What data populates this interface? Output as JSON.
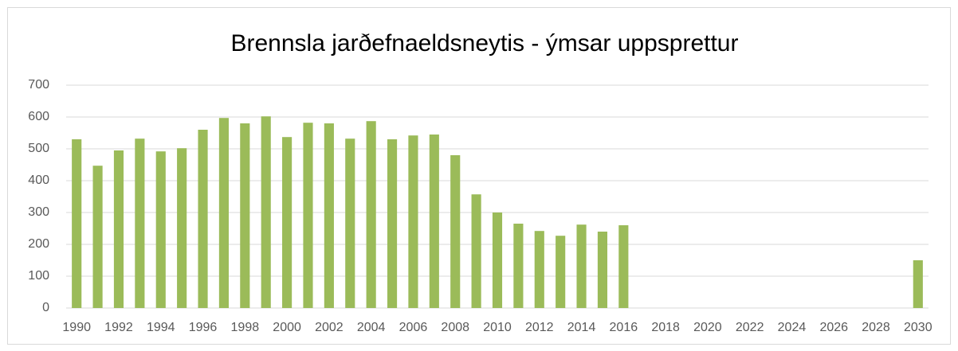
{
  "chart_data": {
    "type": "bar",
    "title": "Brennsla jarðefnaeldsneytis - ýmsar uppsprettur",
    "categories": [
      "1990",
      null,
      "1992",
      null,
      "1994",
      null,
      "1996",
      null,
      "1998",
      null,
      "2000",
      null,
      "2002",
      null,
      "2004",
      null,
      "2006",
      null,
      "2008",
      null,
      "2010",
      null,
      "2012",
      null,
      "2014",
      null,
      "2016",
      null,
      "2018",
      null,
      "2020",
      null,
      "2022",
      null,
      "2024",
      null,
      "2026",
      null,
      "2028",
      null,
      "2030"
    ],
    "values": [
      530,
      447,
      495,
      532,
      492,
      502,
      560,
      597,
      580,
      602,
      537,
      582,
      580,
      532,
      587,
      530,
      542,
      545,
      480,
      357,
      300,
      265,
      242,
      227,
      262,
      240,
      260,
      null,
      null,
      null,
      null,
      null,
      null,
      null,
      null,
      null,
      null,
      null,
      null,
      null,
      150
    ],
    "color": "#9bbb59",
    "ylim": [
      0,
      700
    ],
    "yticks": [
      0,
      100,
      200,
      300,
      400,
      500,
      600,
      700
    ],
    "grid": true
  }
}
